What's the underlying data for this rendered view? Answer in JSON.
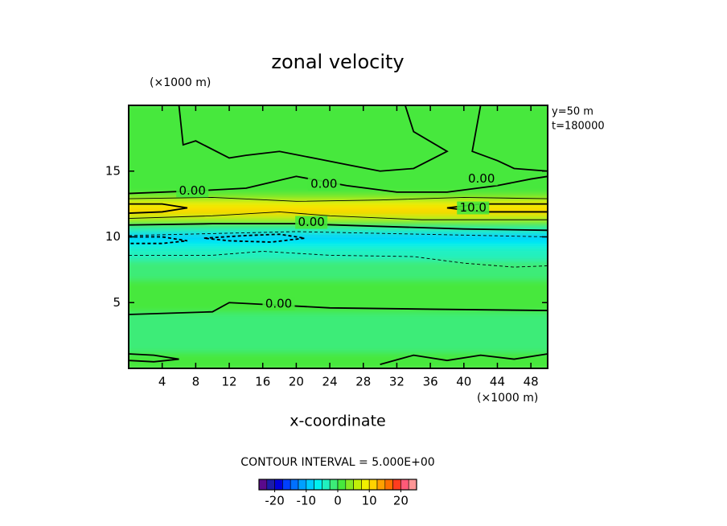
{
  "chart_data": {
    "type": "contour",
    "title": "zonal velocity",
    "x_label": "x-coordinate",
    "x_unit": "(×1000 m)",
    "y_unit": "(×1000 m)",
    "annotations": [
      "y=50 m",
      "t=180000"
    ],
    "contour_interval": "CONTOUR INTERVAL = 5.000E+00",
    "xlim": [
      0,
      50
    ],
    "ylim": [
      0,
      20
    ],
    "xticks": [
      4,
      8,
      12,
      16,
      20,
      24,
      28,
      32,
      36,
      40,
      44,
      48
    ],
    "yticks": [
      5,
      10,
      15
    ],
    "profile": {
      "y": [
        0,
        0.5,
        1,
        1.5,
        2,
        2.5,
        3,
        3.5,
        4,
        4.5,
        5,
        5.5,
        6,
        6.5,
        7,
        7.5,
        8,
        8.5,
        9,
        9.5,
        10,
        10.5,
        11,
        11.5,
        12,
        12.5,
        13,
        13.5,
        14,
        14.5,
        15,
        15.5,
        16,
        16.5,
        17,
        17.5,
        18,
        18.5,
        19,
        19.5,
        20
      ],
      "u": [
        0.5,
        0.5,
        0,
        -1,
        -1,
        -1,
        -1,
        -1,
        -0.5,
        0,
        0.3,
        0,
        0,
        0,
        -0.5,
        -1,
        -2,
        -3,
        -5,
        -7,
        -8,
        -5,
        0,
        7,
        11,
        8,
        3,
        1,
        0.5,
        0.3,
        0.3,
        0.3,
        0.3,
        0.3,
        0.3,
        0.3,
        0.3,
        0.3,
        0.3,
        0.3,
        0.3
      ]
    },
    "contours": [
      {
        "level": 0,
        "x": [
          0,
          8,
          14,
          20,
          26,
          32,
          38,
          44,
          48,
          50
        ],
        "y": [
          13.3,
          13.5,
          13.7,
          14.6,
          13.9,
          13.4,
          13.4,
          13.9,
          14.4,
          14.6
        ]
      },
      {
        "level": 5,
        "x": [
          0,
          10,
          20,
          30,
          40,
          50
        ],
        "y": [
          12.9,
          13.0,
          12.7,
          12.8,
          13.0,
          12.9
        ]
      },
      {
        "level": 10,
        "x": [
          0,
          4,
          7,
          4,
          0
        ],
        "y": [
          12.5,
          12.5,
          12.2,
          11.9,
          11.8
        ]
      },
      {
        "level": 10,
        "x": [
          50,
          42,
          38,
          42,
          50
        ],
        "y": [
          12.5,
          12.5,
          12.2,
          11.9,
          11.9
        ]
      },
      {
        "level": 5,
        "x": [
          0,
          10,
          18,
          24,
          35,
          50
        ],
        "y": [
          11.4,
          11.6,
          11.9,
          11.6,
          11.3,
          11.3
        ]
      },
      {
        "level": 0,
        "x": [
          0,
          10,
          20,
          30,
          40,
          50
        ],
        "y": [
          10.9,
          11.0,
          11.0,
          10.8,
          10.6,
          10.5
        ]
      },
      {
        "level": -5,
        "x": [
          0,
          20,
          35,
          50
        ],
        "y": [
          10.1,
          10.4,
          10.2,
          10.0
        ]
      },
      {
        "level": -10,
        "x": [
          0,
          4,
          7,
          4,
          0
        ],
        "y": [
          10.0,
          10.0,
          9.7,
          9.5,
          9.5
        ]
      },
      {
        "level": -10,
        "x": [
          9,
          14,
          18,
          21,
          17,
          12,
          9
        ],
        "y": [
          9.9,
          10.1,
          10.2,
          9.9,
          9.6,
          9.7,
          9.9
        ]
      },
      {
        "level": -5,
        "x": [
          0,
          10,
          16,
          24,
          34,
          40,
          46,
          50
        ],
        "y": [
          8.6,
          8.6,
          8.9,
          8.6,
          8.5,
          8.0,
          7.7,
          7.8
        ]
      },
      {
        "level": 0,
        "x": [
          0,
          10,
          12,
          18,
          24,
          36,
          50
        ],
        "y": [
          4.1,
          4.3,
          5.0,
          4.8,
          4.6,
          4.5,
          4.4
        ]
      },
      {
        "level": 0,
        "x": [
          6,
          6.5,
          8,
          12,
          14,
          18,
          22,
          26,
          30,
          34,
          38,
          34,
          33
        ],
        "y": [
          20,
          17,
          17.3,
          16,
          16.2,
          16.5,
          16,
          15.5,
          15,
          15.2,
          16.5,
          18,
          20
        ]
      },
      {
        "level": 0,
        "x": [
          42,
          41,
          44,
          46,
          50
        ],
        "y": [
          20,
          16.5,
          15.8,
          15.2,
          15.0
        ]
      },
      {
        "level": 0,
        "x": [
          0,
          3,
          6,
          3,
          0
        ],
        "y": [
          1.1,
          1.0,
          0.7,
          0.5,
          0.6
        ]
      },
      {
        "level": 0,
        "x": [
          30,
          34,
          38,
          42,
          46,
          50
        ],
        "y": [
          0.3,
          1.0,
          0.6,
          1.0,
          0.7,
          1.1
        ]
      }
    ],
    "contour_labels": [
      {
        "x": 7.6,
        "y": 13.5,
        "label": "0.00"
      },
      {
        "x": 23.3,
        "y": 14.0,
        "label": "0.00"
      },
      {
        "x": 42.1,
        "y": 14.4,
        "label": "0.00"
      },
      {
        "x": 41.1,
        "y": 12.2,
        "label": "10.0"
      },
      {
        "x": 21.8,
        "y": 11.1,
        "label": "0.00"
      },
      {
        "x": 17.9,
        "y": 4.9,
        "label": "0.00"
      }
    ],
    "colorbar": {
      "lim": [
        -25,
        25
      ],
      "ticks": [
        -20,
        -10,
        0,
        10,
        20
      ],
      "colors": [
        "#5a0a8c",
        "#1c1ca8",
        "#0000dc",
        "#0040ff",
        "#0070ff",
        "#00a0ff",
        "#00ccff",
        "#00f0f0",
        "#20f0c0",
        "#3cec78",
        "#46e83c",
        "#86e824",
        "#c0ee08",
        "#f0f000",
        "#ffd200",
        "#ffa000",
        "#ff7000",
        "#ff3c1e",
        "#ff5a78",
        "#ff9696"
      ]
    }
  }
}
